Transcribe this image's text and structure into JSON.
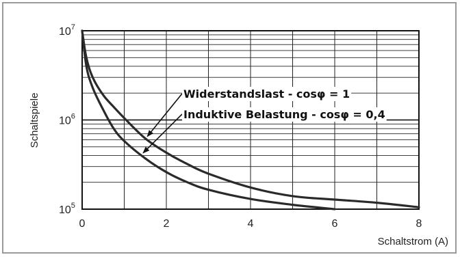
{
  "chart_data": {
    "type": "line",
    "xlabel": "Schaltstrom  (A)",
    "ylabel": "Schaltspiele",
    "xlim": [
      0,
      8
    ],
    "ylim": [
      100000,
      10000000
    ],
    "yscale": "log",
    "grid": true,
    "x_ticks": [
      "0",
      "2",
      "4",
      "6",
      "8"
    ],
    "y_ticks": [
      {
        "base": "10",
        "exp": "7",
        "value": 10000000
      },
      {
        "base": "10",
        "exp": "6",
        "value": 1000000
      },
      {
        "base": "10",
        "exp": "5",
        "value": 100000
      }
    ],
    "series": [
      {
        "name": "Widerstandslast - cosφ = 1",
        "x": [
          0,
          0.1,
          0.25,
          0.5,
          0.75,
          1,
          1.5,
          2,
          2.5,
          3,
          4,
          5,
          6,
          7,
          8
        ],
        "y": [
          10000000,
          5000000,
          3000000,
          1900000,
          1400000,
          1050000,
          620000,
          430000,
          320000,
          250000,
          175000,
          140000,
          128000,
          118000,
          105000
        ]
      },
      {
        "name": "Induktive Belastung - cosφ = 0,4",
        "x": [
          0,
          0.1,
          0.25,
          0.5,
          0.75,
          1,
          1.5,
          2,
          2.5,
          3,
          4,
          5,
          6
        ],
        "y": [
          10000000,
          4000000,
          2300000,
          1300000,
          800000,
          580000,
          370000,
          260000,
          200000,
          165000,
          130000,
          112000,
          100000
        ]
      }
    ],
    "annotations": [
      {
        "text": "Widerstandslast - cosφ = 1",
        "points_to_series": 0,
        "at_x": 1.5
      },
      {
        "text": "Induktive Belastung - cosφ = 0,4",
        "points_to_series": 1,
        "at_x": 1.4
      }
    ]
  }
}
